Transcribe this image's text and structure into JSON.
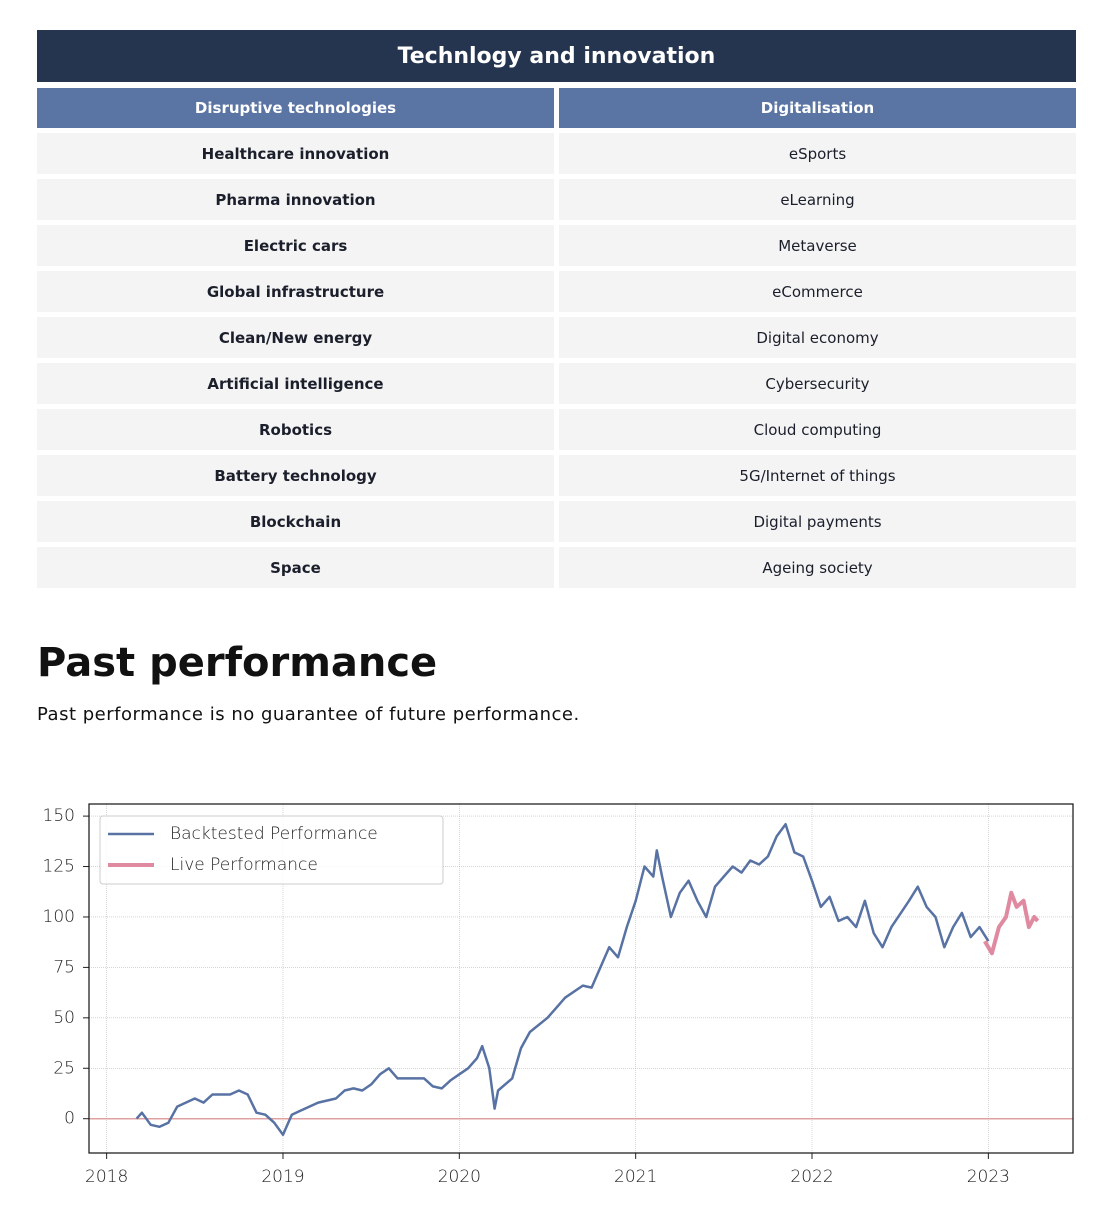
{
  "table": {
    "title": "Technlogy and innovation",
    "columns": [
      "Disruptive technologies",
      "Digitalisation"
    ],
    "rows": [
      [
        "Healthcare innovation",
        "eSports"
      ],
      [
        "Pharma innovation",
        "eLearning"
      ],
      [
        "Electric cars",
        "Metaverse"
      ],
      [
        "Global infrastructure",
        "eCommerce"
      ],
      [
        "Clean/New energy",
        "Digital economy"
      ],
      [
        "Artificial intelligence",
        "Cybersecurity"
      ],
      [
        "Robotics",
        "Cloud computing"
      ],
      [
        "Battery technology",
        "5G/Internet of things"
      ],
      [
        "Blockchain",
        "Digital payments"
      ],
      [
        "Space",
        "Ageing society"
      ]
    ]
  },
  "section": {
    "title": "Past performance",
    "subtitle": "Past performance is no guarantee of future performance."
  },
  "chart_data": {
    "type": "line",
    "xlim": [
      2017.9,
      2023.48
    ],
    "xticks": [
      2018,
      2019,
      2020,
      2021,
      2022,
      2023
    ],
    "ylim": [
      -17,
      156
    ],
    "yticks": [
      0,
      25,
      50,
      75,
      100,
      125,
      150
    ],
    "grid": true,
    "legend": "upper left",
    "series": [
      {
        "name": "Backtested Performance",
        "color": "#5872a3",
        "x": [
          2018.17,
          2018.2,
          2018.25,
          2018.3,
          2018.35,
          2018.4,
          2018.5,
          2018.55,
          2018.6,
          2018.7,
          2018.75,
          2018.8,
          2018.85,
          2018.9,
          2018.95,
          2019.0,
          2019.05,
          2019.1,
          2019.2,
          2019.3,
          2019.35,
          2019.4,
          2019.45,
          2019.5,
          2019.55,
          2019.6,
          2019.65,
          2019.7,
          2019.8,
          2019.85,
          2019.9,
          2019.95,
          2020.0,
          2020.05,
          2020.1,
          2020.13,
          2020.17,
          2020.2,
          2020.22,
          2020.3,
          2020.35,
          2020.4,
          2020.5,
          2020.55,
          2020.6,
          2020.7,
          2020.75,
          2020.8,
          2020.85,
          2020.9,
          2020.95,
          2021.0,
          2021.05,
          2021.1,
          2021.12,
          2021.15,
          2021.2,
          2021.25,
          2021.3,
          2021.35,
          2021.4,
          2021.45,
          2021.5,
          2021.55,
          2021.6,
          2021.65,
          2021.7,
          2021.75,
          2021.8,
          2021.85,
          2021.9,
          2021.95,
          2022.0,
          2022.05,
          2022.1,
          2022.15,
          2022.2,
          2022.25,
          2022.3,
          2022.35,
          2022.4,
          2022.45,
          2022.55,
          2022.6,
          2022.65,
          2022.7,
          2022.75,
          2022.8,
          2022.85,
          2022.9,
          2022.95,
          2023.0
        ],
        "values": [
          0,
          3,
          -3,
          -4,
          -2,
          6,
          10,
          8,
          12,
          12,
          14,
          12,
          3,
          2,
          -2,
          -8,
          2,
          4,
          8,
          10,
          14,
          15,
          14,
          17,
          22,
          25,
          20,
          20,
          20,
          16,
          15,
          19,
          22,
          25,
          30,
          36,
          25,
          5,
          14,
          20,
          35,
          43,
          50,
          55,
          60,
          66,
          65,
          75,
          85,
          80,
          95,
          108,
          125,
          120,
          133,
          120,
          100,
          112,
          118,
          108,
          100,
          115,
          120,
          125,
          122,
          128,
          126,
          130,
          140,
          146,
          132,
          130,
          118,
          105,
          110,
          98,
          100,
          95,
          108,
          92,
          85,
          95,
          108,
          115,
          105,
          100,
          85,
          95,
          102,
          90,
          95,
          88
        ]
      },
      {
        "name": "Live Performance",
        "color": "#e08aa2",
        "x": [
          2022.98,
          2023.02,
          2023.06,
          2023.1,
          2023.13,
          2023.16,
          2023.2,
          2023.23,
          2023.26,
          2023.28
        ],
        "values": [
          88,
          82,
          95,
          100,
          112,
          105,
          108,
          95,
          100,
          98
        ]
      }
    ]
  }
}
